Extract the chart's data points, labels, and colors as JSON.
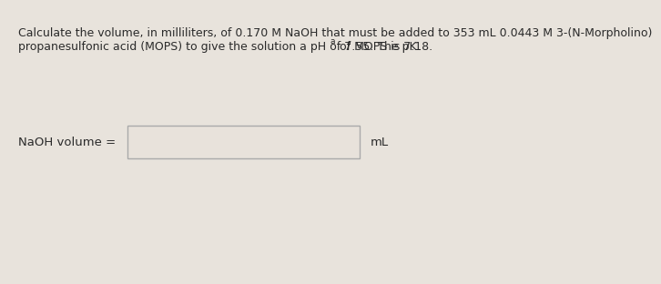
{
  "background_color": "#e8e3dc",
  "text_color": "#2a2a2a",
  "line1": "Calculate the volume, in milliliters, of 0.170 M NaOH that must be added to 353 mL 0.0443 M 3-(N-Morpholino)",
  "line2_part1": "propanesulfonic acid (MOPS) to give the solution a pH of 7.55. The pK",
  "line2_sub": "a",
  "line2_part2": " of MOPS is 7.18.",
  "label": "NaOH volume =",
  "unit": "mL",
  "box_facecolor": "#e8e2db",
  "box_edgecolor": "#aaaaaa",
  "font_size_text": 9.0,
  "font_size_label": 9.5
}
